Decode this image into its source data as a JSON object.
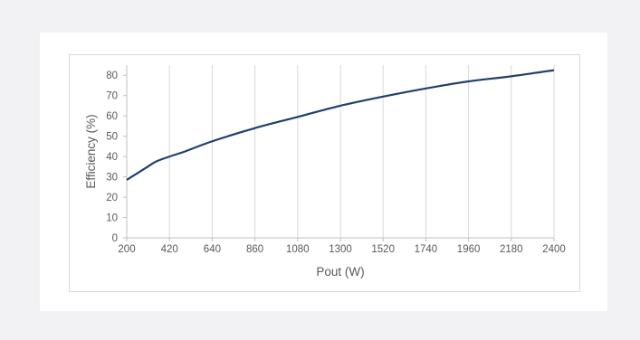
{
  "chart_data": {
    "type": "line",
    "title": "",
    "xlabel": "Pout (W)",
    "ylabel": "Efficiency (%)",
    "xlim": [
      200,
      2400
    ],
    "ylim": [
      0,
      85
    ],
    "xticks": [
      "200",
      "420",
      "640",
      "860",
      "1080",
      "1300",
      "1520",
      "1740",
      "1960",
      "2180",
      "2400"
    ],
    "yticks": [
      "0",
      "10",
      "20",
      "30",
      "40",
      "50",
      "60",
      "70",
      "80"
    ],
    "grid": "vertical",
    "legend": "none",
    "series": [
      {
        "x": [
          200,
          250,
          300,
          350,
          420,
          500,
          640,
          860,
          1080,
          1300,
          1520,
          1740,
          1960,
          2180,
          2400
        ],
        "y": [
          28.5,
          31.5,
          34.5,
          37.5,
          40,
          42.5,
          47.5,
          54,
          59.5,
          65,
          69.5,
          73.5,
          77,
          79.5,
          82.5
        ]
      }
    ],
    "colors": {
      "line": "#1f3f6e",
      "grid": "#d9d9d9",
      "axis": "#bfbfbf",
      "text": "#595959"
    }
  }
}
